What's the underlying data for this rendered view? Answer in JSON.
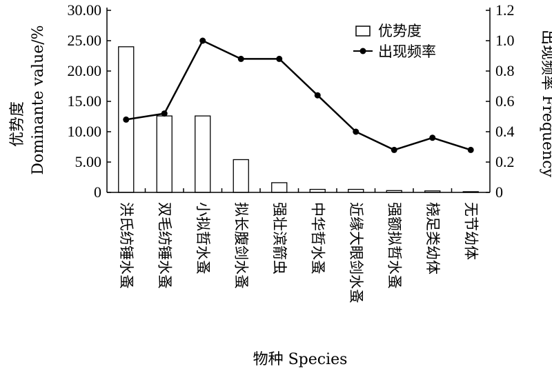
{
  "chart_data": {
    "type": "bar+line",
    "categories": [
      "洪氏纺锤水蚤",
      "双毛纺锤水蚤",
      "小拟哲水蚤",
      "拟长腹剑水蚤",
      "强壮滨箭虫",
      "中华哲水蚤",
      "近缘大眼剑水蚤",
      "强额拟哲水蚤",
      "桡足类幼体",
      "无节幼体"
    ],
    "series": [
      {
        "name": "优势度",
        "type": "bar",
        "axis": "left",
        "values": [
          24.0,
          12.6,
          12.6,
          5.4,
          1.6,
          0.5,
          0.5,
          0.3,
          0.25,
          0.12
        ]
      },
      {
        "name": "出现频率",
        "type": "line",
        "axis": "right",
        "values": [
          0.48,
          0.52,
          1.0,
          0.88,
          0.88,
          0.64,
          0.4,
          0.28,
          0.36,
          0.28
        ]
      }
    ],
    "xlabel": "物种  Species",
    "ylabel": "优势度",
    "ylabel_en": "Dominante value/%",
    "y2label": "出现频率  Frequency",
    "ylim": [
      0,
      30
    ],
    "y2lim": [
      0,
      1.2
    ],
    "yticks": [
      "0",
      "5.00",
      "10.00",
      "15.00",
      "20.00",
      "25.00",
      "30.00"
    ],
    "y2ticks": [
      "0",
      "0.2",
      "0.4",
      "0.6",
      "0.8",
      "1.0",
      "1.2"
    ],
    "legend_position": "top-right",
    "grid": false,
    "colors": {
      "bar_fill": "#ffffff",
      "stroke": "#000000",
      "line": "#000000"
    }
  }
}
